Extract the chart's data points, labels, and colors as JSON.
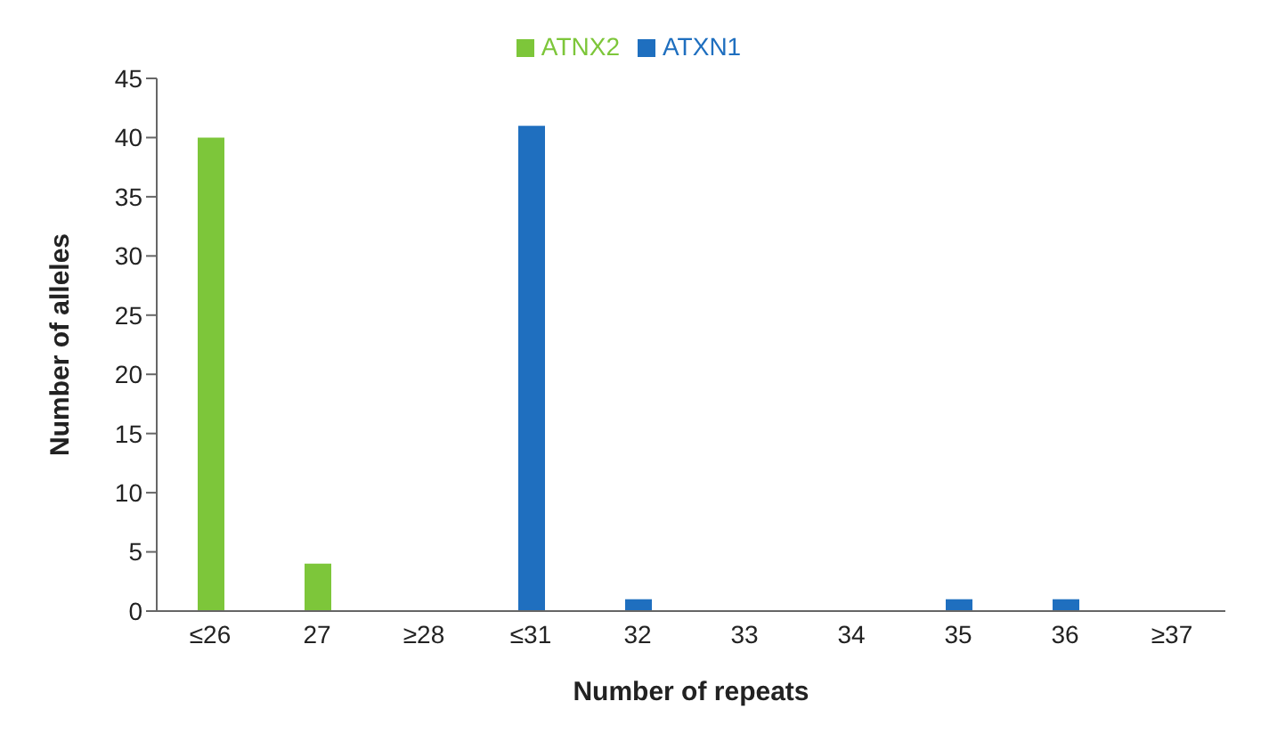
{
  "chart_data": {
    "type": "bar",
    "xlabel": "Number of repeats",
    "ylabel": "Number of alleles",
    "categories": [
      "≤26",
      "27",
      "≥28",
      "≤31",
      "32",
      "33",
      "34",
      "35",
      "36",
      "≥37"
    ],
    "series": [
      {
        "name": "ATXN1",
        "color": "#1f6fbf",
        "values": [
          null,
          null,
          null,
          41,
          1,
          null,
          null,
          1,
          1,
          null
        ]
      },
      {
        "name": "ATNX2",
        "color": "#7dc63a",
        "values": [
          40,
          4,
          null,
          null,
          null,
          null,
          null,
          null,
          null,
          null
        ]
      }
    ],
    "stacked": true,
    "ylim": [
      0,
      45
    ],
    "yticks": [
      0,
      5,
      10,
      15,
      20,
      25,
      30,
      35,
      40,
      45
    ],
    "grid": false,
    "legend": "top"
  }
}
